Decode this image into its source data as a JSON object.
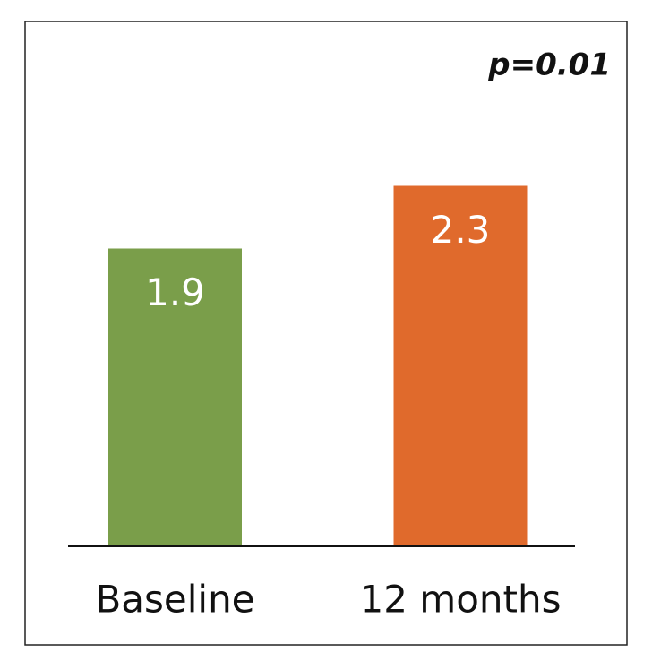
{
  "chart_data": {
    "type": "bar",
    "annotation": "p=0.01",
    "categories": [
      "Baseline",
      "12 months"
    ],
    "values": [
      1.9,
      2.3
    ],
    "colors": [
      "#7a9e4a",
      "#e06a2c"
    ]
  }
}
